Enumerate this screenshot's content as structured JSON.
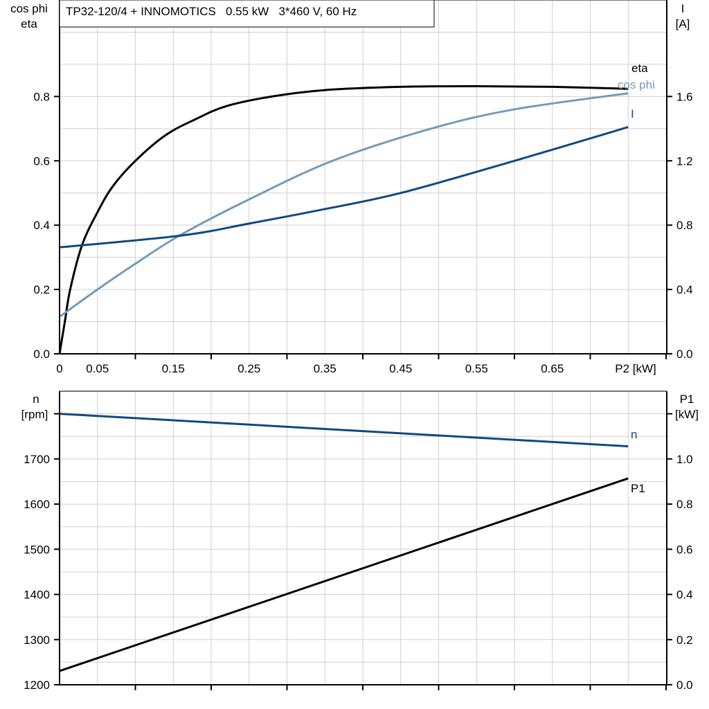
{
  "title": "TP32-120/4 + INNOMOTICS   0.55 kW   3*460 V, 60 Hz",
  "colors": {
    "eta": "#000000",
    "cos_phi": "#7499bb",
    "I": "#0c4a80",
    "n": "#0c4a80",
    "P1": "#000000",
    "grid": "#d0d0d0"
  },
  "chart_data": [
    {
      "type": "line",
      "xlabel": "P2 [kW]",
      "xlim": [
        0,
        0.8
      ],
      "x_ticks": [
        "0",
        "0.05",
        "0.15",
        "0.25",
        "0.35",
        "0.45",
        "0.55",
        "0.65"
      ],
      "ylabel_left": [
        "cos phi",
        "eta"
      ],
      "ylim_left": [
        0,
        1.1
      ],
      "y_ticks_left": [
        "0.0",
        "0.2",
        "0.4",
        "0.6",
        "0.8"
      ],
      "ylabel_right": [
        "I",
        "[A]"
      ],
      "ylim_right": [
        0,
        2.2
      ],
      "y_ticks_right": [
        "0.0",
        "0.4",
        "0.8",
        "1.2",
        "1.6"
      ],
      "grid": true,
      "series": [
        {
          "name": "eta",
          "axis": "left",
          "x": [
            0,
            0.007,
            0.014,
            0.03,
            0.05,
            0.07,
            0.1,
            0.14,
            0.18,
            0.22,
            0.28,
            0.35,
            0.45,
            0.55,
            0.65,
            0.75
          ],
          "y": [
            0,
            0.1,
            0.2,
            0.34,
            0.44,
            0.52,
            0.6,
            0.68,
            0.73,
            0.77,
            0.8,
            0.82,
            0.83,
            0.832,
            0.83,
            0.824
          ]
        },
        {
          "name": "cos phi",
          "axis": "left",
          "x": [
            0,
            0.05,
            0.1,
            0.16,
            0.25,
            0.36,
            0.49,
            0.6,
            0.75
          ],
          "y": [
            0.115,
            0.2,
            0.28,
            0.37,
            0.48,
            0.6,
            0.7,
            0.76,
            0.81
          ]
        },
        {
          "name": "I",
          "axis": "right",
          "x": [
            0,
            0.16,
            0.25,
            0.35,
            0.45,
            0.6,
            0.75
          ],
          "y": [
            0.662,
            0.735,
            0.81,
            0.9,
            1.0,
            1.2,
            1.41
          ]
        }
      ]
    },
    {
      "type": "line",
      "xlim": [
        0,
        0.8
      ],
      "ylabel_left": [
        "n",
        "[rpm]"
      ],
      "ylim_left": [
        1200,
        1850
      ],
      "y_ticks_left": [
        "1200",
        "1300",
        "1400",
        "1500",
        "1600",
        "1700"
      ],
      "ylabel_right": [
        "P1",
        "[kW]"
      ],
      "ylim_right": [
        0,
        1.3
      ],
      "y_ticks_right": [
        "0.0",
        "0.2",
        "0.4",
        "0.6",
        "0.8",
        "1.0"
      ],
      "grid": true,
      "series": [
        {
          "name": "n",
          "axis": "left",
          "x": [
            0,
            0.75
          ],
          "y": [
            1800,
            1728
          ]
        },
        {
          "name": "P1",
          "axis": "right",
          "x": [
            0,
            0.75
          ],
          "y": [
            0.061,
            0.914
          ]
        }
      ]
    }
  ]
}
